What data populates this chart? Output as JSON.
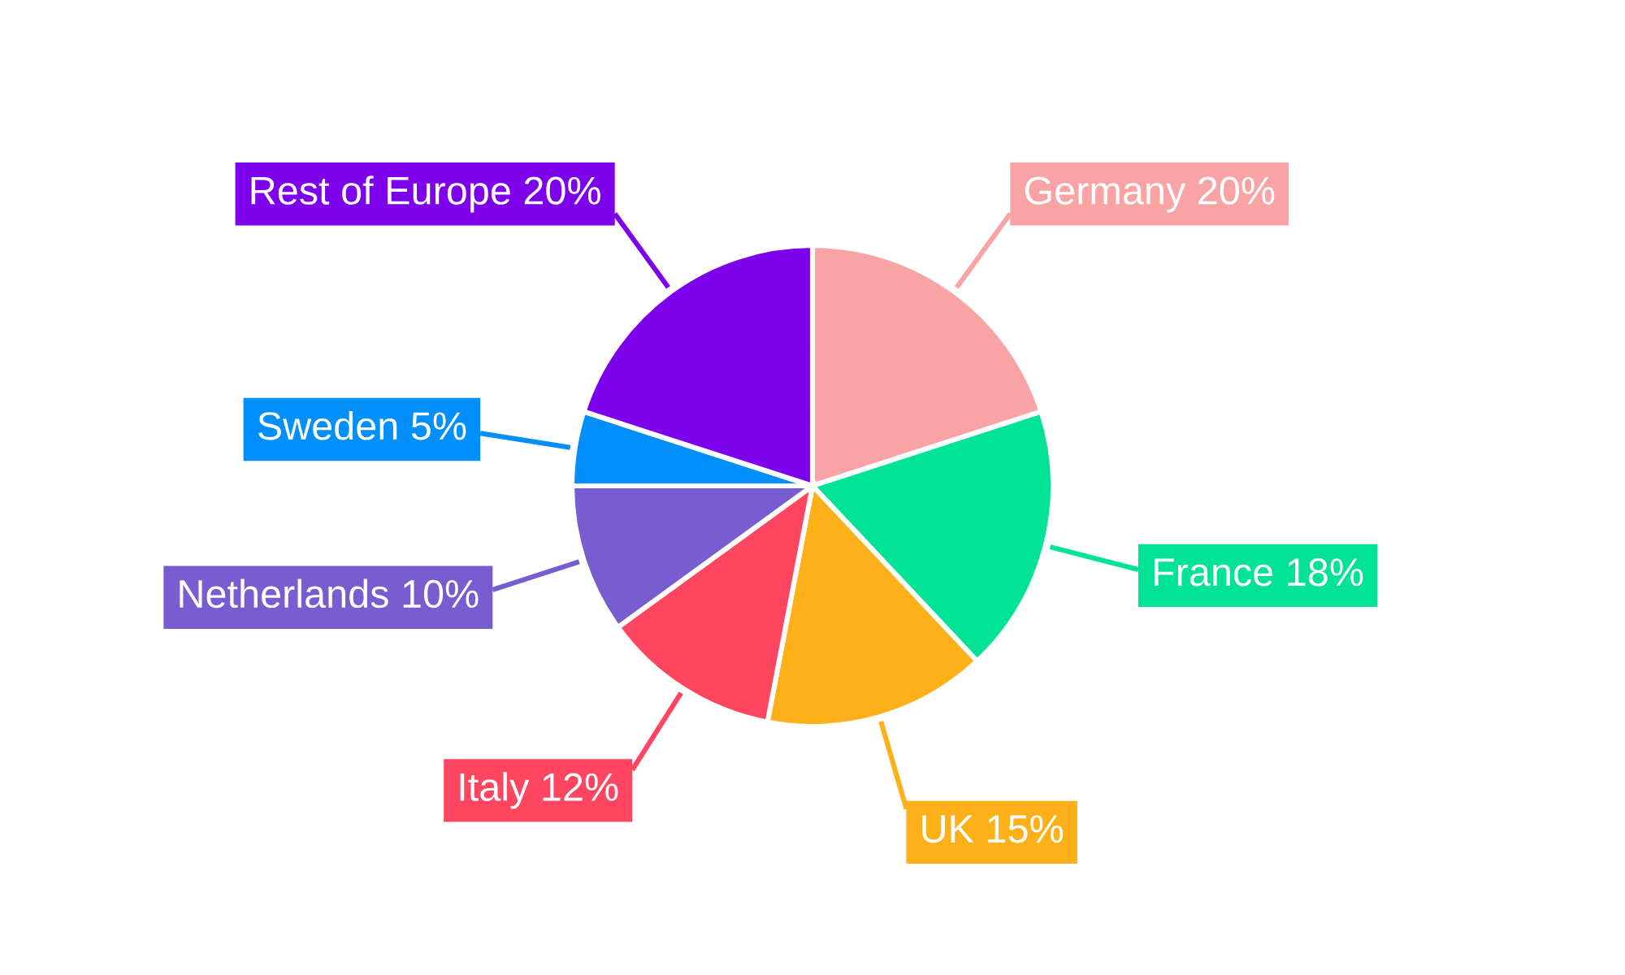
{
  "chart_data": {
    "type": "pie",
    "categories": [
      "Germany",
      "France",
      "UK",
      "Italy",
      "Netherlands",
      "Sweden",
      "Rest of Europe"
    ],
    "values": [
      20,
      18,
      15,
      12,
      10,
      5,
      20
    ],
    "value_labels": [
      "20%",
      "18%",
      "15%",
      "12%",
      "10%",
      "5%",
      "20%"
    ],
    "colors": [
      "#f9a3a4",
      "#00e396",
      "#feb019",
      "#ff4560",
      "#775dd0",
      "#008ffb",
      "#7d02eb"
    ]
  }
}
